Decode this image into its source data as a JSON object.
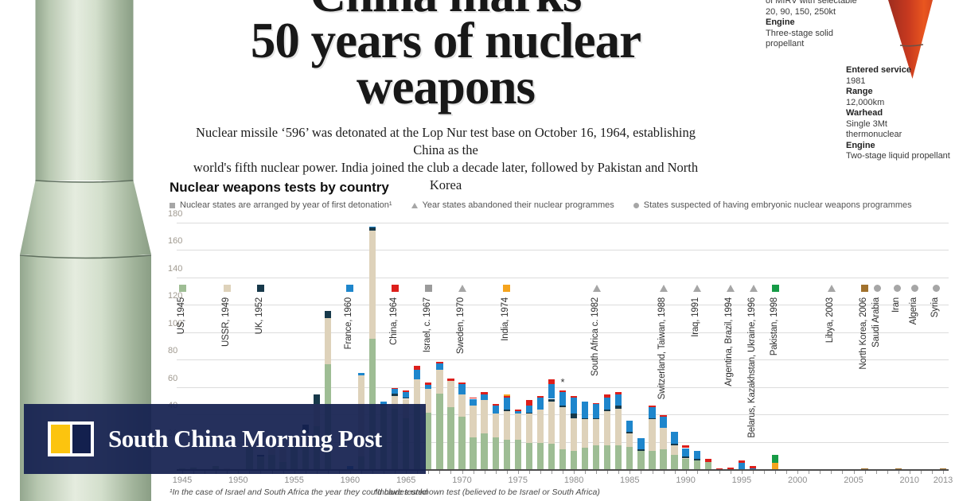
{
  "header": {
    "headline_lines": [
      "China marks",
      "50 years of nuclear",
      "weapons"
    ],
    "subtitle_lines": [
      "Nuclear missile ‘596’ was detonated at the Lop Nur test base on October 16, 1964, establishing China as the",
      "world's fifth nuclear power. India joined the club a decade later, followed by Pakistan and North Korea"
    ]
  },
  "missile_specs": {
    "top": [
      {
        "b": 0,
        "t": "of MIRV with selectable"
      },
      {
        "b": 0,
        "t": "20, 90, 150, 250kt"
      },
      {
        "b": 1,
        "t": "Engine"
      },
      {
        "b": 0,
        "t": "Three-stage solid"
      },
      {
        "b": 0,
        "t": "propellant"
      }
    ],
    "right": [
      {
        "b": 1,
        "t": "Entered service"
      },
      {
        "b": 0,
        "t": "1981"
      },
      {
        "b": 1,
        "t": "Range"
      },
      {
        "b": 0,
        "t": "12,000km"
      },
      {
        "b": 1,
        "t": "Warhead"
      },
      {
        "b": 0,
        "t": "Single 3Mt"
      },
      {
        "b": 0,
        "t": "thermonuclear"
      },
      {
        "b": 1,
        "t": "Engine"
      },
      {
        "b": 0,
        "t": "Two-stage liquid propellant"
      }
    ]
  },
  "chart_data": {
    "type": "bar",
    "title": "Nuclear weapons tests by country",
    "stacked": true,
    "x_start": 1945,
    "x_end": 2013,
    "ylim": [
      0,
      180
    ],
    "y_step": 20,
    "x_tick_labels": [
      1945,
      1950,
      1955,
      1960,
      1965,
      1970,
      1975,
      1980,
      1985,
      1990,
      1995,
      2000,
      2005,
      2010,
      2013
    ],
    "legend": [
      {
        "marker": "square",
        "text": "Nuclear states are arranged by year of first detonation¹"
      },
      {
        "marker": "triangle",
        "text": "Year states abandoned their nuclear programmes"
      },
      {
        "marker": "circle",
        "text": "States suspected of having embryonic nuclear weapons programmes"
      }
    ],
    "series": [
      {
        "name": "US",
        "color": "#9ebd94",
        "values": [
          1,
          2,
          0,
          3,
          0,
          0,
          16,
          10,
          11,
          6,
          18,
          18,
          32,
          77,
          0,
          0,
          10,
          96,
          47,
          45,
          38,
          48,
          42,
          56,
          46,
          39,
          24,
          27,
          24,
          22,
          22,
          20,
          20,
          19,
          15,
          14,
          16,
          18,
          18,
          18,
          17,
          14,
          14,
          15,
          11,
          8,
          7,
          6,
          0,
          0,
          0,
          0,
          0,
          0,
          0,
          0,
          0,
          0,
          0,
          0,
          0,
          0,
          0,
          0,
          0,
          0,
          0,
          0,
          0
        ]
      },
      {
        "name": "USSR",
        "color": "#ded2ba",
        "values": [
          0,
          0,
          0,
          0,
          1,
          0,
          2,
          0,
          5,
          10,
          6,
          9,
          16,
          34,
          0,
          0,
          59,
          79,
          0,
          9,
          14,
          18,
          17,
          17,
          19,
          16,
          23,
          24,
          17,
          21,
          19,
          21,
          24,
          31,
          31,
          24,
          21,
          19,
          25,
          27,
          10,
          0,
          23,
          16,
          7,
          1,
          0,
          0,
          0,
          0,
          0,
          0,
          0,
          0,
          0,
          0,
          0,
          0,
          0,
          0,
          0,
          0,
          0,
          0,
          0,
          0,
          0,
          0,
          0
        ]
      },
      {
        "name": "UK",
        "color": "#17394a",
        "values": [
          0,
          0,
          0,
          0,
          0,
          0,
          0,
          1,
          2,
          0,
          0,
          6,
          7,
          5,
          0,
          0,
          0,
          2,
          0,
          2,
          1,
          0,
          0,
          0,
          0,
          0,
          0,
          0,
          0,
          1,
          0,
          1,
          0,
          2,
          1,
          3,
          1,
          1,
          1,
          2,
          1,
          1,
          1,
          0,
          1,
          1,
          1,
          0,
          0,
          0,
          0,
          0,
          0,
          0,
          0,
          0,
          0,
          0,
          0,
          0,
          0,
          0,
          0,
          0,
          0,
          0,
          0,
          0,
          0
        ]
      },
      {
        "name": "France",
        "color": "#1e86cc",
        "values": [
          0,
          0,
          0,
          0,
          0,
          0,
          0,
          0,
          0,
          0,
          0,
          0,
          0,
          0,
          0,
          3,
          2,
          1,
          3,
          3,
          4,
          7,
          3,
          5,
          0,
          8,
          5,
          4,
          6,
          9,
          2,
          5,
          9,
          11,
          10,
          12,
          12,
          10,
          9,
          8,
          8,
          8,
          8,
          8,
          9,
          6,
          6,
          0,
          0,
          0,
          5,
          1,
          0,
          0,
          0,
          0,
          0,
          0,
          0,
          0,
          0,
          0,
          0,
          0,
          0,
          0,
          0,
          0,
          0
        ]
      },
      {
        "name": "China",
        "color": "#dd1f1b",
        "values": [
          0,
          0,
          0,
          0,
          0,
          0,
          0,
          0,
          0,
          0,
          0,
          0,
          0,
          0,
          0,
          0,
          0,
          0,
          0,
          1,
          1,
          3,
          2,
          1,
          2,
          1,
          1,
          2,
          1,
          1,
          1,
          4,
          1,
          3,
          1,
          1,
          0,
          1,
          2,
          2,
          0,
          0,
          1,
          1,
          0,
          2,
          0,
          2,
          1,
          2,
          2,
          2,
          0,
          0,
          0,
          0,
          0,
          0,
          0,
          0,
          0,
          0,
          0,
          0,
          0,
          0,
          0,
          0,
          0
        ]
      },
      {
        "name": "India",
        "color": "#f5a41d",
        "values": [
          0,
          0,
          0,
          0,
          0,
          0,
          0,
          0,
          0,
          0,
          0,
          0,
          0,
          0,
          0,
          0,
          0,
          0,
          0,
          0,
          0,
          0,
          0,
          0,
          0,
          0,
          0,
          0,
          0,
          1,
          0,
          0,
          0,
          0,
          0,
          0,
          0,
          0,
          0,
          0,
          0,
          0,
          0,
          0,
          0,
          0,
          0,
          0,
          0,
          0,
          0,
          0,
          0,
          5,
          0,
          0,
          0,
          0,
          0,
          0,
          0,
          0,
          0,
          0,
          0,
          0,
          0,
          0,
          0
        ]
      },
      {
        "name": "Pakistan",
        "color": "#169b46",
        "values": [
          0,
          0,
          0,
          0,
          0,
          0,
          0,
          0,
          0,
          0,
          0,
          0,
          0,
          0,
          0,
          0,
          0,
          0,
          0,
          0,
          0,
          0,
          0,
          0,
          0,
          0,
          0,
          0,
          0,
          0,
          0,
          0,
          0,
          0,
          0,
          0,
          0,
          0,
          0,
          0,
          0,
          0,
          0,
          0,
          0,
          0,
          0,
          0,
          0,
          0,
          0,
          0,
          0,
          6,
          0,
          0,
          0,
          0,
          0,
          0,
          0,
          0,
          0,
          0,
          0,
          0,
          0,
          0,
          0
        ]
      },
      {
        "name": "North Korea",
        "color": "#a1722d",
        "values": [
          0,
          0,
          0,
          0,
          0,
          0,
          0,
          0,
          0,
          0,
          0,
          0,
          0,
          0,
          0,
          0,
          0,
          0,
          0,
          0,
          0,
          0,
          0,
          0,
          0,
          0,
          0,
          0,
          0,
          0,
          0,
          0,
          0,
          0,
          0,
          0,
          0,
          0,
          0,
          0,
          0,
          0,
          0,
          0,
          0,
          0,
          0,
          0,
          0,
          0,
          0,
          0,
          0,
          0,
          0,
          0,
          0,
          0,
          0,
          0,
          0,
          1,
          0,
          0,
          1,
          0,
          0,
          0,
          1
        ]
      }
    ],
    "country_markers": [
      {
        "label": "US, 1945",
        "marker": "square",
        "color": "#9ebd94",
        "year": 1945
      },
      {
        "label": "USSR, 1949",
        "marker": "square",
        "color": "#ded2ba",
        "year": 1949
      },
      {
        "label": "UK, 1952",
        "marker": "square",
        "color": "#17394a",
        "year": 1952
      },
      {
        "label": "France, 1960",
        "marker": "square",
        "color": "#1e86cc",
        "year": 1960
      },
      {
        "label": "China, 1964",
        "marker": "square",
        "color": "#dd1f1b",
        "year": 1964
      },
      {
        "label": "Israel, c. 1967",
        "marker": "square",
        "color": "#9b9b9b",
        "year": 1967
      },
      {
        "label": "Sweden, 1970",
        "marker": "triangle",
        "color": "#a6a6a6",
        "year": 1970
      },
      {
        "label": "India, 1974",
        "marker": "square",
        "color": "#f5a41d",
        "year": 1974
      },
      {
        "label": "South Africa c. 1982",
        "marker": "triangle",
        "color": "#a6a6a6",
        "year": 1982
      },
      {
        "label": "Switzerland, Taiwan, 1988",
        "marker": "triangle",
        "color": "#a6a6a6",
        "year": 1988
      },
      {
        "label": "Iraq, 1991",
        "marker": "triangle",
        "color": "#a6a6a6",
        "year": 1991
      },
      {
        "label": "Argentina, Brazil, 1994",
        "marker": "triangle",
        "color": "#a6a6a6",
        "year": 1994
      },
      {
        "label": "Belarus, Kazakhstan, Ukraine, 1996",
        "marker": "triangle",
        "color": "#a6a6a6",
        "year": 1996
      },
      {
        "label": "Pakistan, 1998",
        "marker": "square",
        "color": "#169b46",
        "year": 1998
      },
      {
        "label": "Libya, 2003",
        "marker": "triangle",
        "color": "#a6a6a6",
        "year": 2003
      },
      {
        "label": "North Korea, 2006",
        "marker": "square",
        "color": "#a1722d",
        "year": 2006
      },
      {
        "label": "Saudi Arabia",
        "marker": "circle",
        "color": "#a6a6a6",
        "year": 2007.1
      },
      {
        "label": "Iran",
        "marker": "circle",
        "color": "#a6a6a6",
        "year": 2008.9
      },
      {
        "label": "Algeria",
        "marker": "circle",
        "color": "#a6a6a6",
        "year": 2010.5
      },
      {
        "label": "Syria",
        "marker": "circle",
        "color": "#a6a6a6",
        "year": 2012.4
      }
    ],
    "asterisk_year": 1979
  },
  "footnotes": [
    "¹In the case of Israel and South Africa the year they could have tested",
    "*Includes unknown test (believed to be Israel or South Africa)"
  ],
  "branding": {
    "publisher": "South China Morning Post",
    "logo_yellow": "#fcc40f",
    "logo_navy": "#13204e"
  }
}
